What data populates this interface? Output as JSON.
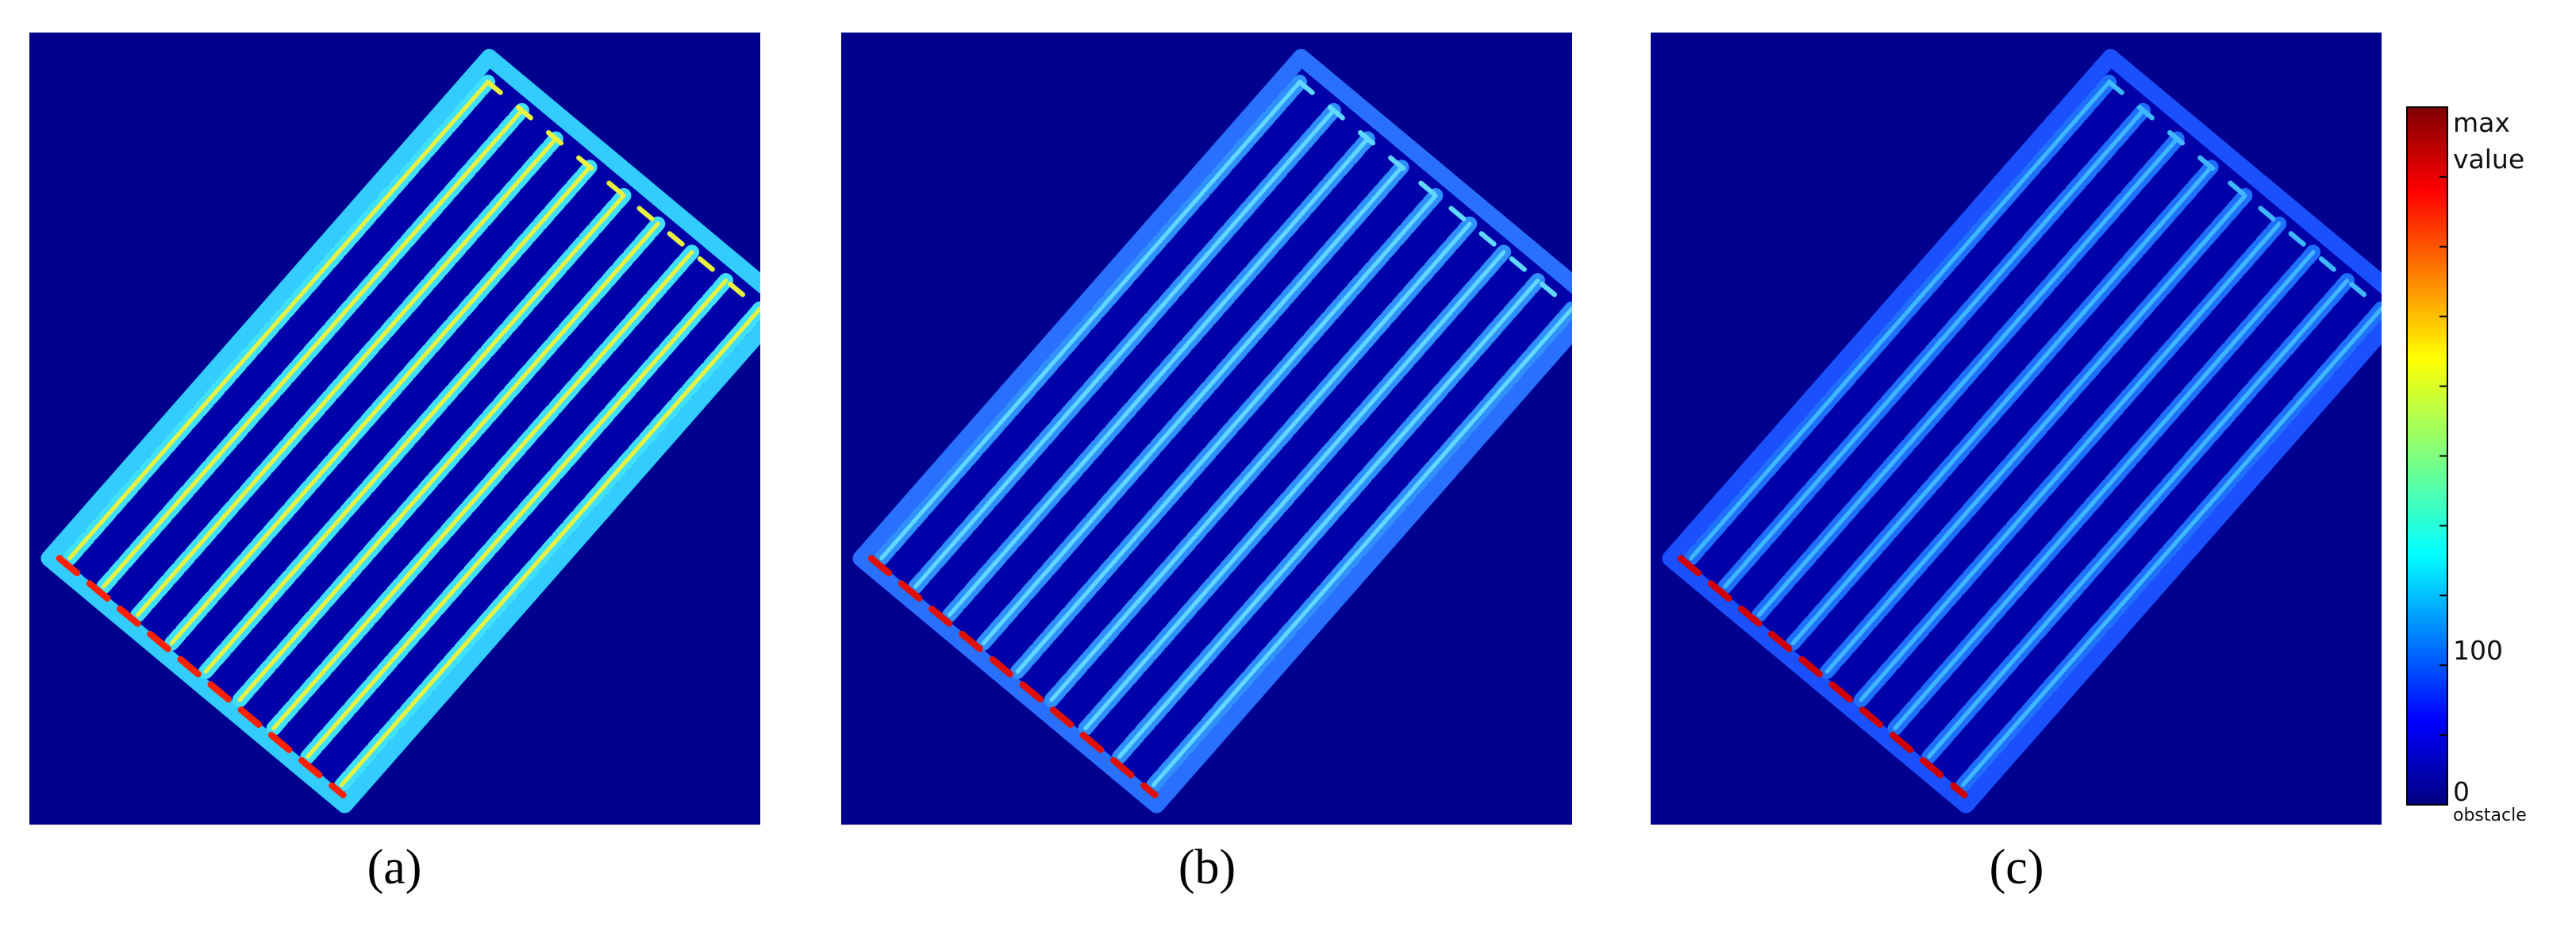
{
  "panels": [
    {
      "label": "(a)"
    },
    {
      "label": "(b)"
    },
    {
      "label": "(c)"
    }
  ],
  "colorbar": {
    "top_label": [
      "max",
      "value"
    ],
    "mid_label": "100",
    "bottom_label": "0",
    "bottom_note": "obstacle"
  }
}
